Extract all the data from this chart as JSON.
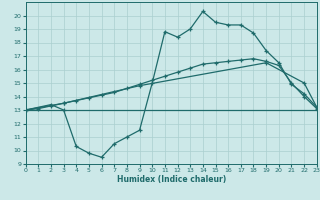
{
  "xlabel": "Humidex (Indice chaleur)",
  "xlim": [
    0,
    23
  ],
  "ylim": [
    9,
    21
  ],
  "yticks": [
    9,
    10,
    11,
    12,
    13,
    14,
    15,
    16,
    17,
    18,
    19,
    20
  ],
  "xticks": [
    0,
    1,
    2,
    3,
    4,
    5,
    6,
    7,
    8,
    9,
    10,
    11,
    12,
    13,
    14,
    15,
    16,
    17,
    18,
    19,
    20,
    21,
    22,
    23
  ],
  "bg_color": "#cce8e8",
  "line_color": "#1f6b6b",
  "grid_color": "#aacfcf",
  "line1_x": [
    0,
    3,
    23
  ],
  "line1_y": [
    13,
    13,
    13
  ],
  "line2_x": [
    0,
    3,
    9,
    19,
    22,
    23
  ],
  "line2_y": [
    13,
    13.5,
    14.8,
    16.5,
    15.0,
    13.2
  ],
  "line3_x": [
    0,
    1,
    2,
    3,
    4,
    5,
    6,
    7,
    8,
    9,
    10,
    11,
    12,
    13,
    14,
    15,
    16,
    17,
    18,
    19,
    20,
    21,
    22,
    23
  ],
  "line3_y": [
    13,
    13.1,
    13.3,
    13.5,
    13.7,
    13.9,
    14.1,
    14.3,
    14.6,
    14.9,
    15.2,
    15.5,
    15.8,
    16.1,
    16.4,
    16.5,
    16.6,
    16.7,
    16.8,
    16.6,
    16.3,
    15.0,
    14.0,
    13.1
  ],
  "line4_x": [
    0,
    2,
    3,
    4,
    5,
    6,
    7,
    8,
    9,
    10,
    11,
    12,
    13,
    14,
    15,
    16,
    17,
    18,
    19,
    20,
    21,
    22,
    23
  ],
  "line4_y": [
    13,
    13.4,
    13.0,
    10.3,
    9.8,
    9.5,
    10.5,
    11.0,
    11.5,
    15.0,
    18.8,
    18.4,
    19.0,
    20.3,
    19.5,
    19.3,
    19.3,
    18.7,
    17.4,
    16.5,
    14.9,
    14.2,
    13.2
  ]
}
